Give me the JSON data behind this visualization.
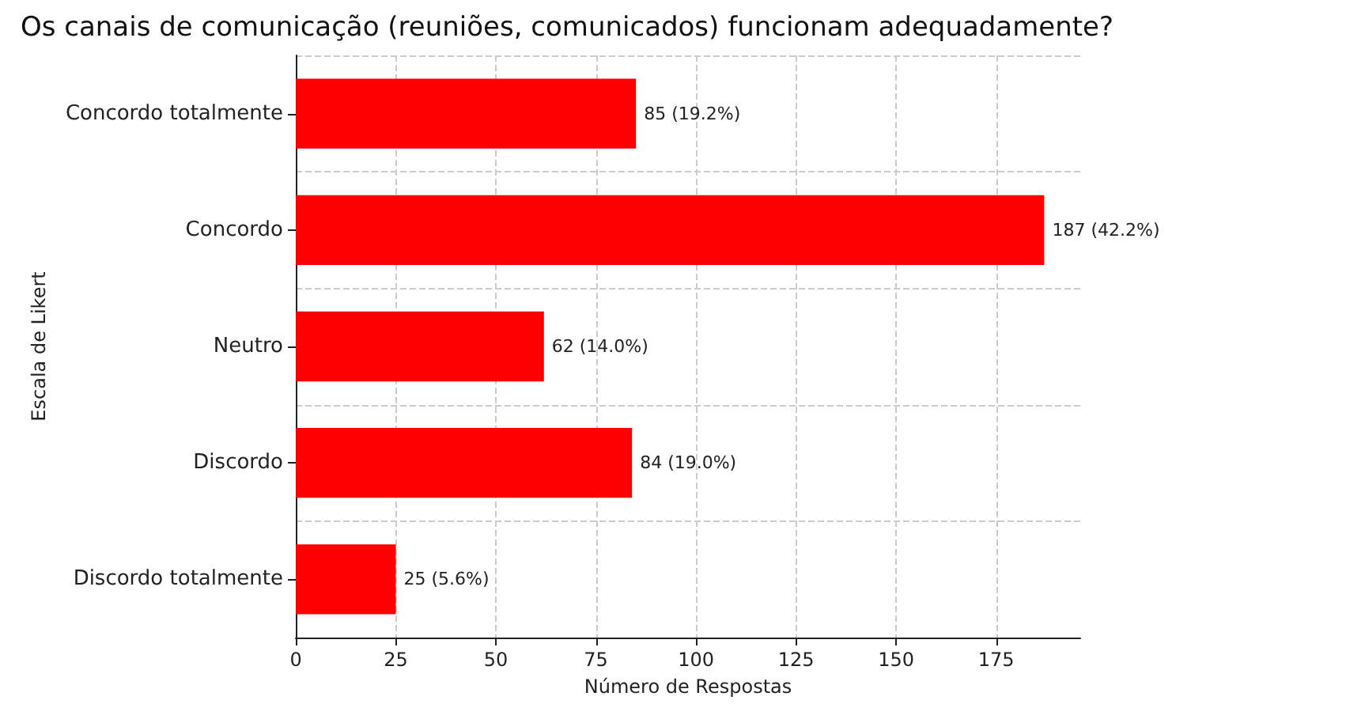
{
  "chart_data": {
    "type": "bar",
    "orientation": "horizontal",
    "title": "Os canais de comunicação (reuniões, comunicados) funcionam adequadamente?",
    "xlabel": "Número de Respostas",
    "ylabel": "Escala de Likert",
    "categories": [
      "Concordo totalmente",
      "Concordo",
      "Neutro",
      "Discordo",
      "Discordo totalmente"
    ],
    "values": [
      85,
      187,
      62,
      84,
      25
    ],
    "value_labels": [
      "85 (19.2%)",
      "187 (42.2%)",
      "62 (14.0%)",
      "84 (19.0%)",
      "25 (5.6%)"
    ],
    "color": "#ff0000",
    "xlim": [
      0,
      196
    ],
    "xticks": [
      0,
      25,
      50,
      75,
      100,
      125,
      150,
      175
    ],
    "grid": true
  }
}
